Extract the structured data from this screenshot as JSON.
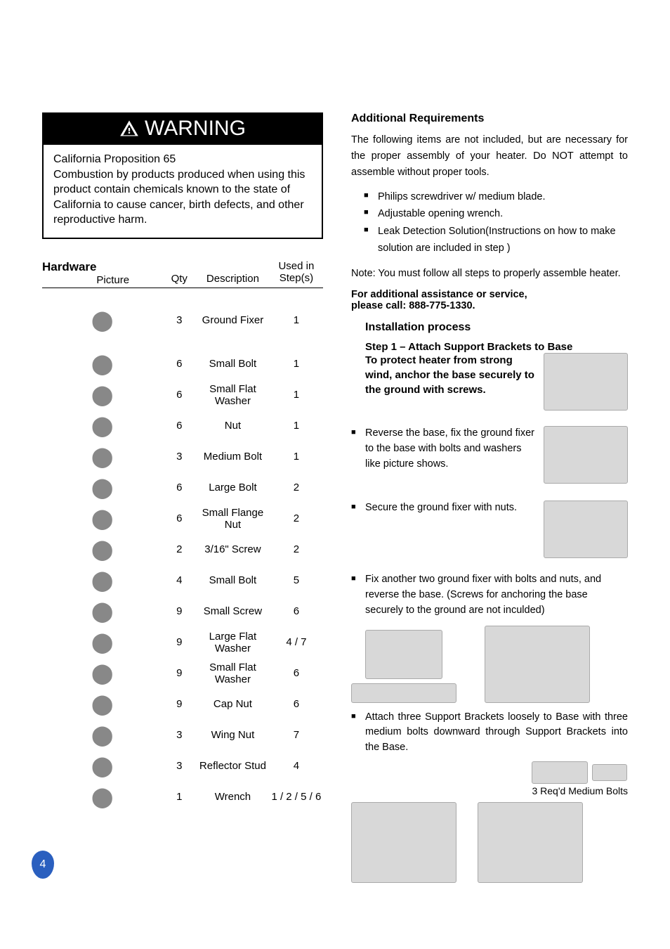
{
  "warning": {
    "title": "WARNING",
    "heading": "California Proposition 65",
    "body": "Combustion by products produced when using this product contain chemicals known to the state of California to cause cancer, birth defects, and other reproductive harm."
  },
  "hardware": {
    "title": "Hardware",
    "columns": {
      "picture": "Picture",
      "qty": "Qty",
      "desc": "Description",
      "step": "Used in Step(s)"
    },
    "rows": [
      {
        "qty": "3",
        "desc": "Ground Fixer",
        "step": "1",
        "tall": true
      },
      {
        "qty": "6",
        "desc": "Small Bolt",
        "step": "1",
        "tall": false
      },
      {
        "qty": "6",
        "desc": "Small Flat Washer",
        "step": "1",
        "tall": false
      },
      {
        "qty": "6",
        "desc": "Nut",
        "step": "1",
        "tall": false
      },
      {
        "qty": "3",
        "desc": "Medium Bolt",
        "step": "1",
        "tall": false
      },
      {
        "qty": "6",
        "desc": "Large Bolt",
        "step": "2",
        "tall": false
      },
      {
        "qty": "6",
        "desc": "Small Flange Nut",
        "step": "2",
        "tall": false
      },
      {
        "qty": "2",
        "desc": "3/16\" Screw",
        "step": "2",
        "tall": false
      },
      {
        "qty": "4",
        "desc": "Small Bolt",
        "step": "5",
        "tall": false
      },
      {
        "qty": "9",
        "desc": "Small Screw",
        "step": "6",
        "tall": false
      },
      {
        "qty": "9",
        "desc": "Large Flat Washer",
        "step": "4 / 7",
        "tall": false
      },
      {
        "qty": "9",
        "desc": "Small Flat Washer",
        "step": "6",
        "tall": false
      },
      {
        "qty": "9",
        "desc": "Cap Nut",
        "step": "6",
        "tall": false
      },
      {
        "qty": "3",
        "desc": "Wing Nut",
        "step": "7",
        "tall": false
      },
      {
        "qty": "3",
        "desc": "Reflector Stud",
        "step": "4",
        "tall": false
      },
      {
        "qty": "1",
        "desc": "Wrench",
        "step": "1 / 2 / 5 / 6",
        "tall": false
      }
    ]
  },
  "right": {
    "addreq_title": "Additional Requirements",
    "addreq_intro": "The following items are not included, but are necessary for the proper assembly of your heater. Do NOT attempt to assemble without proper tools.",
    "addreq_items": [
      "Philips screwdriver w/ medium blade.",
      "Adjustable opening wrench.",
      "Leak Detection Solution(Instructions on how to make solution are included in step )"
    ],
    "note": "Note: You must follow all steps to properly assemble heater.",
    "assist": "For additional assistance or service,\nplease call: 888-775-1330.",
    "install_title": "Installation process",
    "step1_title": "Step 1 – Attach Support Brackets to Base",
    "step1_sub": "To protect heater from strong wind, anchor the base securely to the ground with screws.",
    "step1_b1": "Reverse the base, fix the ground fixer to the base with bolts and washers like picture shows.",
    "step1_b2": "Secure the ground fixer with nuts.",
    "step1_b3": "Fix another two ground fixer with bolts and nuts, and reverse the base. (Screws for anchoring the base securely to the ground are not inculded)",
    "step1_b4": "Attach three Support Brackets loosely to Base with three medium bolts downward through Support Brackets into the Base.",
    "req_bolts": "3 Req'd Medium Bolts"
  },
  "page_number": "4",
  "colors": {
    "pagenum_bg": "#2a5fbf",
    "pagenum_fg": "#ffffff",
    "placeholder_bg": "#d8d8d8"
  }
}
